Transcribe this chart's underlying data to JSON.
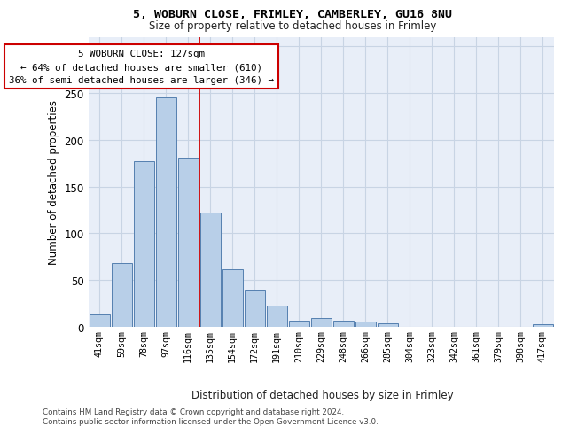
{
  "title1": "5, WOBURN CLOSE, FRIMLEY, CAMBERLEY, GU16 8NU",
  "title2": "Size of property relative to detached houses in Frimley",
  "xlabel": "Distribution of detached houses by size in Frimley",
  "ylabel": "Number of detached properties",
  "categories": [
    "41sqm",
    "59sqm",
    "78sqm",
    "97sqm",
    "116sqm",
    "135sqm",
    "154sqm",
    "172sqm",
    "191sqm",
    "210sqm",
    "229sqm",
    "248sqm",
    "266sqm",
    "285sqm",
    "304sqm",
    "323sqm",
    "342sqm",
    "361sqm",
    "379sqm",
    "398sqm",
    "417sqm"
  ],
  "values": [
    13,
    68,
    177,
    245,
    181,
    122,
    62,
    40,
    23,
    7,
    10,
    7,
    6,
    4,
    0,
    0,
    0,
    0,
    0,
    0,
    3
  ],
  "bar_color": "#b8cfe8",
  "bar_edge_color": "#5580b0",
  "redline_color": "#cc0000",
  "grid_color": "#c8d4e4",
  "background_color": "#e8eef8",
  "annotation_line1": "5 WOBURN CLOSE: 127sqm",
  "annotation_line2": "← 64% of detached houses are smaller (610)",
  "annotation_line3": "36% of semi-detached houses are larger (346) →",
  "footer_text": "Contains HM Land Registry data © Crown copyright and database right 2024.\nContains public sector information licensed under the Open Government Licence v3.0.",
  "ylim": [
    0,
    310
  ],
  "yticks": [
    0,
    50,
    100,
    150,
    200,
    250,
    300
  ],
  "red_line_x": 4.5
}
